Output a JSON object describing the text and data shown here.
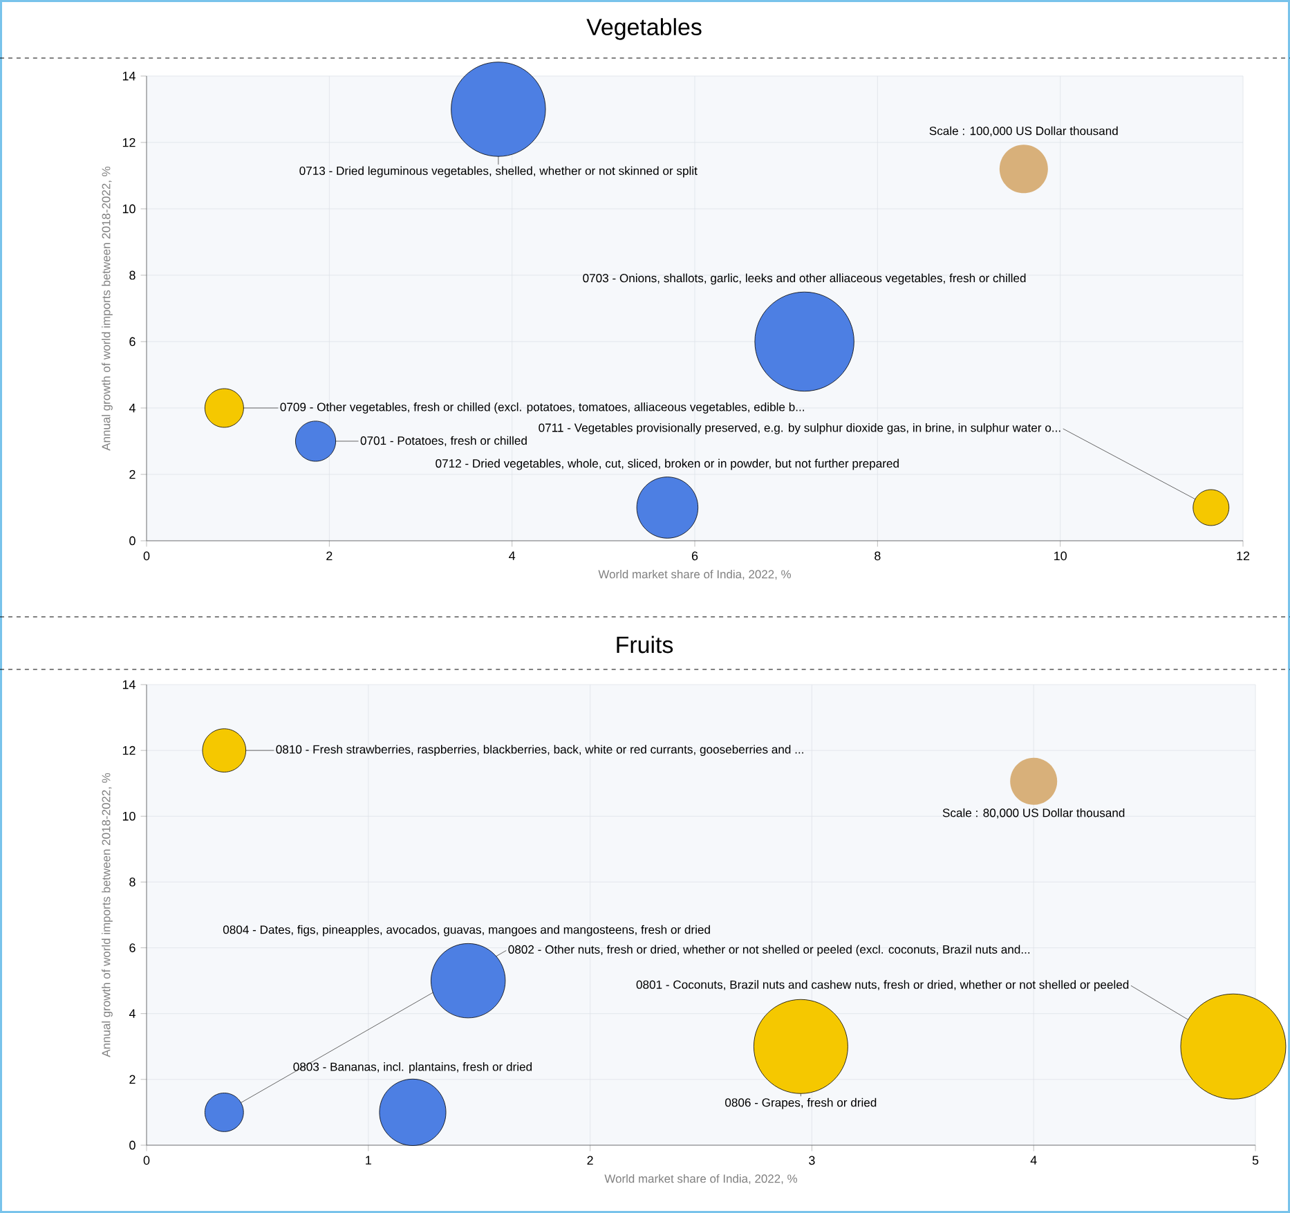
{
  "chart_data": [
    {
      "type": "bubble",
      "title": "Vegetables",
      "xlabel": "World market share of India, 2022, %",
      "ylabel": "Annual growth of world imports between 2018-2022, %",
      "xlim": [
        0,
        12
      ],
      "xticks": [
        0,
        2,
        4,
        6,
        8,
        10,
        12
      ],
      "ylim": [
        0,
        14
      ],
      "yticks": [
        0,
        2,
        4,
        6,
        8,
        10,
        12,
        14
      ],
      "grid": true,
      "size_legend": [
        {
          "value": 100000,
          "label": "Scale : 100,000 US Dollar thousand"
        }
      ],
      "series": [
        {
          "name": "0713 - Dried leguminous vegetables, shelled, whether or not skinned or split",
          "color": "#4d7fe3",
          "x": [
            3.85
          ],
          "values": [
            13
          ],
          "sizes": [
            380000
          ]
        },
        {
          "name": "0703 - Onions, shallots, garlic, leeks and other alliaceous vegetables, fresh or chilled",
          "color": "#4d7fe3",
          "x": [
            7.2
          ],
          "values": [
            6
          ],
          "sizes": [
            420000
          ]
        },
        {
          "name": "0709 - Other vegetables, fresh or chilled (excl. potatoes, tomatoes, alliaceous vegetables, edible b...",
          "color": "#f5c800",
          "x": [
            0.85
          ],
          "values": [
            4
          ],
          "sizes": [
            64000
          ]
        },
        {
          "name": "0711 - Vegetables provisionally preserved, e.g. by sulphur dioxide gas, in brine, in sulphur water o...",
          "color": "#f5c800",
          "x": [
            11.65
          ],
          "values": [
            1
          ],
          "sizes": [
            55000
          ]
        },
        {
          "name": "0701 - Potatoes, fresh or chilled",
          "color": "#4d7fe3",
          "x": [
            1.85
          ],
          "values": [
            3
          ],
          "sizes": [
            69000
          ]
        },
        {
          "name": "0712 - Dried vegetables, whole, cut, sliced, broken or in powder, but not further prepared",
          "color": "#4d7fe3",
          "x": [
            5.7
          ],
          "values": [
            1
          ],
          "sizes": [
            160000
          ]
        }
      ]
    },
    {
      "type": "bubble",
      "title": "Fruits",
      "xlabel": "World market share of India, 2022, %",
      "ylabel": "Annual growth of world imports between 2018-2022, %",
      "xlim": [
        0,
        5
      ],
      "xticks": [
        0,
        1,
        2,
        3,
        4,
        5
      ],
      "ylim": [
        0,
        14
      ],
      "yticks": [
        0,
        2,
        4,
        6,
        8,
        10,
        12,
        14
      ],
      "grid": true,
      "size_legend": [
        {
          "value": 80000,
          "label": "Scale : 80,000 US Dollar thousand"
        }
      ],
      "series": [
        {
          "name": "0810 - Fresh strawberries, raspberries, blackberries, back, white or red currants, gooseberries and ...",
          "color": "#f5c800",
          "x": [
            0.35
          ],
          "values": [
            12
          ],
          "sizes": [
            68000
          ]
        },
        {
          "name": "0804 - Dates, figs, pineapples, avocados, guavas, mangoes and mangosteens, fresh or dried",
          "color": "#4d7fe3",
          "x": [
            1.45
          ],
          "values": [
            5
          ],
          "sizes": [
            200000
          ]
        },
        {
          "name": "0802 - Other nuts, fresh or dried, whether or not shelled or peeled (excl. coconuts, Brazil nuts and...",
          "color": "#4d7fe3",
          "x": [
            0.35
          ],
          "values": [
            1
          ],
          "sizes": [
            54000
          ]
        },
        {
          "name": "0801 - Coconuts, Brazil nuts and cashew nuts, fresh or dried, whether or not shelled or peeled",
          "color": "#f5c800",
          "x": [
            4.9
          ],
          "values": [
            3
          ],
          "sizes": [
            400000
          ]
        },
        {
          "name": "0803 - Bananas, incl. plantains, fresh or dried",
          "color": "#4d7fe3",
          "x": [
            1.2
          ],
          "values": [
            1
          ],
          "sizes": [
            160000
          ]
        },
        {
          "name": "0806 - Grapes, fresh or dried",
          "color": "#f5c800",
          "x": [
            2.95
          ],
          "values": [
            3
          ],
          "sizes": [
            320000
          ]
        }
      ]
    }
  ]
}
